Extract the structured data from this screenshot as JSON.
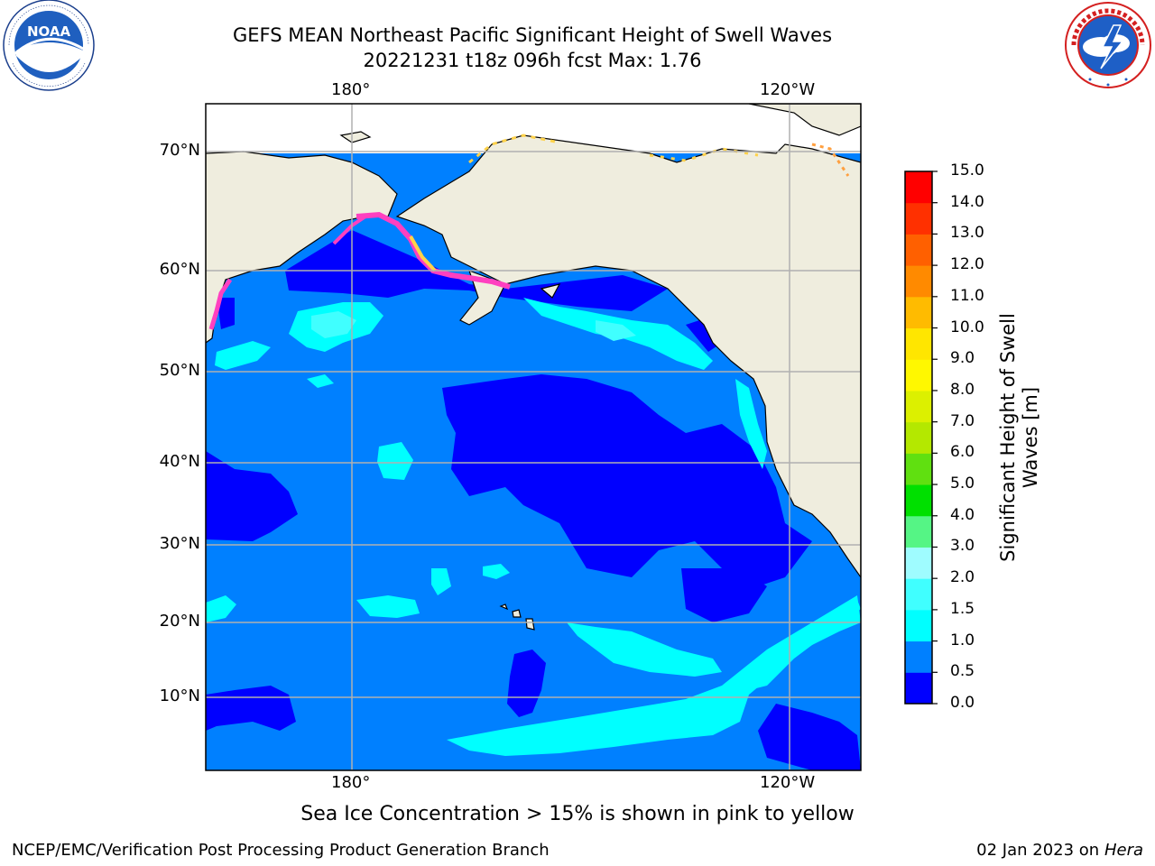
{
  "header": {
    "title_line1": "GEFS MEAN Northeast Pacific Significant Height of Swell Waves",
    "title_line2": "20221231 t18z 096h fcst   Max: 1.76"
  },
  "logos": {
    "left": {
      "name": "NOAA",
      "icon": "noaa-logo-icon",
      "text": "NOAA",
      "ring_text": "NATIONAL OCEANIC AND ATMOSPHERIC ADMINISTRATION · U.S. DEPARTMENT OF COMMERCE"
    },
    "right": {
      "name": "National Weather Service",
      "icon": "nws-logo-icon",
      "ring_text": "NATIONAL WEATHER SERVICE"
    }
  },
  "map": {
    "longitude_labels": [
      "180°",
      "120°W"
    ],
    "latitude_labels": [
      "70°N",
      "60°N",
      "50°N",
      "40°N",
      "30°N",
      "20°N",
      "10°N"
    ],
    "colors": {
      "land": "#efedde",
      "ocean_0_0.5": "#0000ff",
      "ocean_0.5_1.0": "#0080ff",
      "ocean_1.0_1.5": "#00ffff",
      "ocean_1.5_2.0": "#40ffff",
      "grid": "#b0b0b0",
      "ice_pink": "#ff40c0",
      "ice_yellow": "#ffd24a"
    }
  },
  "colorbar": {
    "label": "Significant Height of Swell Waves [m]",
    "ticks": [
      "0.0",
      "0.5",
      "1.0",
      "1.5",
      "2.0",
      "3.0",
      "4.0",
      "5.0",
      "6.0",
      "7.0",
      "8.0",
      "9.0",
      "10.0",
      "11.0",
      "12.0",
      "13.0",
      "14.0",
      "15.0"
    ],
    "colors": [
      "#0000ff",
      "#0080ff",
      "#00ffff",
      "#40ffff",
      "#9ffcff",
      "#55f585",
      "#00e000",
      "#60e010",
      "#b4e800",
      "#dcf000",
      "#fff800",
      "#ffe600",
      "#ffbb00",
      "#ff8a00",
      "#ff6000",
      "#ff3000",
      "#ff0000"
    ]
  },
  "footer": {
    "ice_note": "Sea Ice Concentration > 15% is shown in pink to yellow",
    "credit": "NCEP/EMC/Verification Post Processing Product Generation Branch",
    "date_prefix": "02 Jan 2023 on ",
    "date_machine": "Hera"
  }
}
